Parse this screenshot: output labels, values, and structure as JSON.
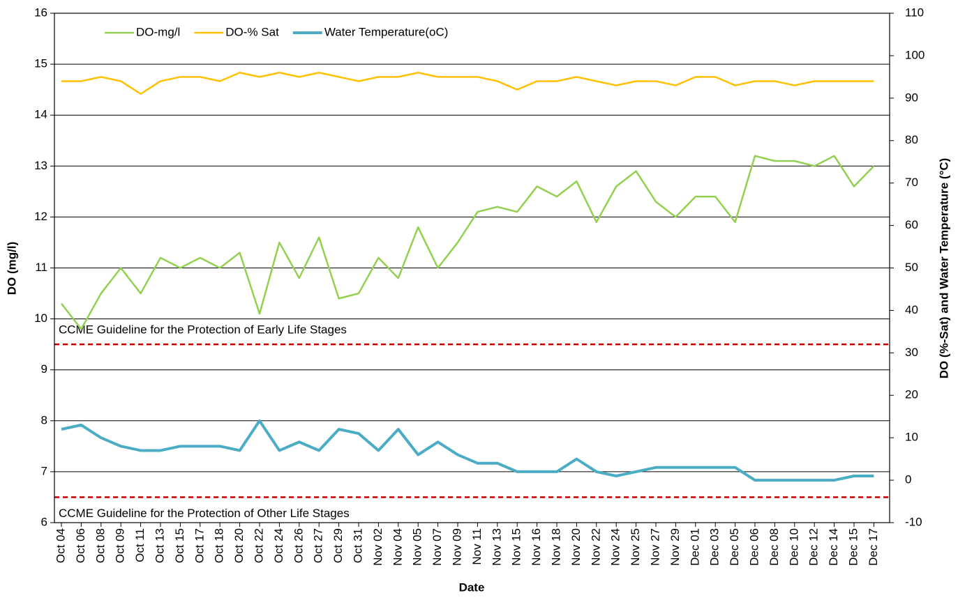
{
  "chart_data": {
    "type": "line",
    "x_label": "Date",
    "y_label": "DO (mg/l)",
    "y2_label": "DO (%-Sat) and Water Temperature  (°C)",
    "categories": [
      "Oct 04",
      "Oct 06",
      "Oct 08",
      "Oct 09",
      "Oct 11",
      "Oct 13",
      "Oct 15",
      "Oct 17",
      "Oct 18",
      "Oct 20",
      "Oct 22",
      "Oct 24",
      "Oct 26",
      "Oct 27",
      "Oct 29",
      "Oct 31",
      "Nov 02",
      "Nov 04",
      "Nov 05",
      "Nov 07",
      "Nov 09",
      "Nov 11",
      "Nov 13",
      "Nov 15",
      "Nov 16",
      "Nov 18",
      "Nov 20",
      "Nov 22",
      "Nov 24",
      "Nov 25",
      "Nov 27",
      "Nov 29",
      "Dec 01",
      "Dec 03",
      "Dec 05",
      "Dec 06",
      "Dec 08",
      "Dec 10",
      "Dec 12",
      "Dec 14",
      "Dec 15",
      "Dec 17"
    ],
    "series": [
      {
        "name": "DO-mg/l",
        "color": "#92d050",
        "width": 2.5,
        "values": [
          10.3,
          9.8,
          10.5,
          11.0,
          10.5,
          11.2,
          11.0,
          11.2,
          11.0,
          11.3,
          10.1,
          11.5,
          10.8,
          11.6,
          10.4,
          10.5,
          11.2,
          10.8,
          11.8,
          11.0,
          11.5,
          12.1,
          12.2,
          12.1,
          12.6,
          12.4,
          12.7,
          11.9,
          12.6,
          12.9,
          12.3,
          12.0,
          12.4,
          12.4,
          11.9,
          13.2,
          13.1,
          13.1,
          13.0,
          13.2,
          12.6,
          13.0
        ]
      },
      {
        "name": "DO-% Sat",
        "color": "#ffc000",
        "width": 2.5,
        "axis": "y2",
        "values": [
          94,
          94,
          95,
          94,
          91,
          94,
          95,
          95,
          94,
          96,
          95,
          96,
          95,
          96,
          95,
          94,
          95,
          95,
          96,
          95,
          95,
          95,
          94,
          92,
          94,
          94,
          95,
          94,
          93,
          94,
          94,
          93,
          95,
          95,
          93,
          94,
          94,
          93,
          94,
          94,
          94,
          94
        ]
      },
      {
        "name": "Water Temperature(oC)",
        "color": "#4bacc6",
        "width": 4,
        "axis": "y2",
        "values": [
          12,
          13,
          10,
          8,
          7,
          7,
          8,
          8,
          8,
          7,
          14,
          7,
          9,
          7,
          12,
          11,
          7,
          12,
          6,
          9,
          6,
          4,
          4,
          2,
          2,
          2,
          5,
          2,
          1,
          2,
          3,
          3,
          3,
          3,
          3,
          0,
          0,
          0,
          0,
          0,
          1,
          1
        ]
      }
    ],
    "ylim": [
      6,
      16
    ],
    "yticks": [
      6,
      7,
      8,
      9,
      10,
      11,
      12,
      13,
      14,
      15,
      16
    ],
    "y2lim": [
      -10,
      110
    ],
    "y2ticks": [
      -10,
      0,
      10,
      20,
      30,
      40,
      50,
      60,
      70,
      80,
      90,
      100,
      110
    ],
    "grid": true,
    "legend": "top-left",
    "reference_lines": [
      {
        "value": 9.5,
        "label": "CCME Guideline for the Protection of Early Life Stages",
        "color": "#c00000"
      },
      {
        "value": 6.5,
        "label": "CCME Guideline for the Protection of Other Life Stages",
        "color": "#c00000"
      }
    ]
  }
}
